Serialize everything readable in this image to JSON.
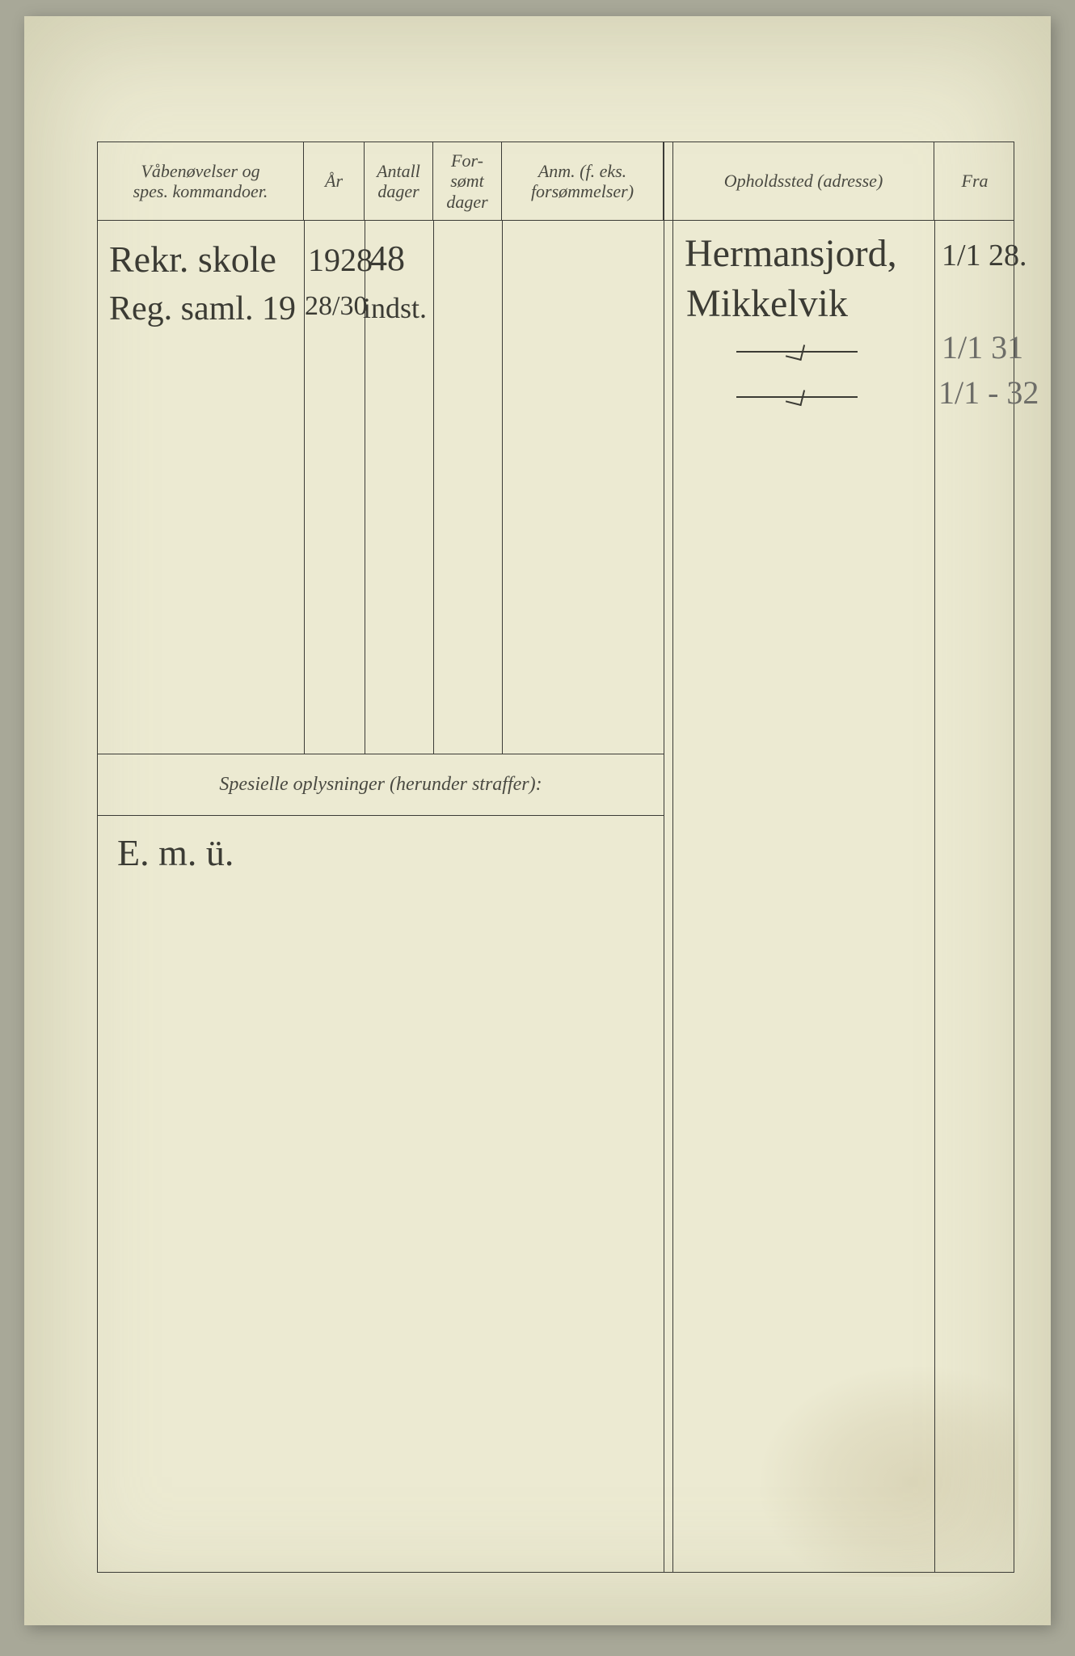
{
  "page": {
    "background_color": "#ecead2",
    "ink_color": "#3b3b36",
    "header_text_color": "#4a4a42",
    "handwriting_color": "#3b3b34",
    "handwriting_light_color": "#6d6d68"
  },
  "headers": {
    "ovelser": "Våbenøvelser og\nspes. kommandoer.",
    "ar": "År",
    "antall_dager": "Antall\ndager",
    "forsomt_dager": "For-\nsømt\ndager",
    "anm": "Anm. (f. eks.\nforsømmelser)",
    "opholdssted": "Opholdssted (adresse)",
    "fra": "Fra"
  },
  "spesielle_label": "Spesielle oplysninger (herunder straffer):",
  "entries": {
    "row1": {
      "ovelser": "Rekr. skole",
      "ar": "1928",
      "antall_dager": "48",
      "opholdssted": "Hermansjord,",
      "fra": "1/1 28."
    },
    "row2": {
      "ovelser": "Reg. saml. 19",
      "ar": "28/30",
      "antall_dager": "indst.",
      "opholdssted": "Mikkelvik",
      "fra": ""
    },
    "row3": {
      "fra": "1/1 31"
    },
    "row4": {
      "fra": "1/1 - 32"
    }
  },
  "spesielle_entry": "E. m. ü."
}
